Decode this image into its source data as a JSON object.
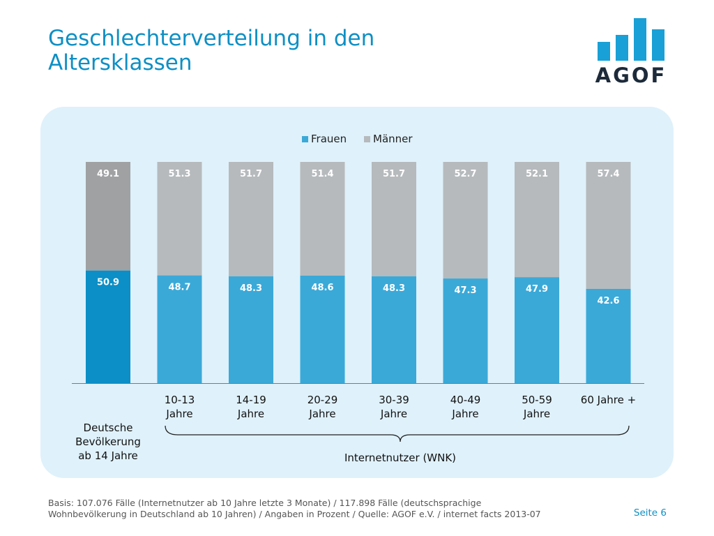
{
  "header": {
    "title_line1": "Geschlechterverteilung in den",
    "title_line2": "Altersklassen",
    "logo_text": "AGOF"
  },
  "chart_data": {
    "type": "bar",
    "stacked": true,
    "categories": [
      "",
      "10-13 Jahre",
      "14-19 Jahre",
      "20-29 Jahre",
      "30-39 Jahre",
      "40-49 Jahre",
      "50-59 Jahre",
      "60 Jahre +"
    ],
    "category_lines": [
      [
        ""
      ],
      [
        "10-13",
        "Jahre"
      ],
      [
        "14-19",
        "Jahre"
      ],
      [
        "20-29",
        "Jahre"
      ],
      [
        "30-39",
        "Jahre"
      ],
      [
        "40-49",
        "Jahre"
      ],
      [
        "50-59",
        "Jahre"
      ],
      [
        "60 Jahre +"
      ]
    ],
    "series": [
      {
        "name": "Frauen",
        "values": [
          50.9,
          48.7,
          48.3,
          48.6,
          48.3,
          47.3,
          47.9,
          42.6
        ],
        "color": "#3aa9d8",
        "highlight_color": "#0b8fc6"
      },
      {
        "name": "Männer",
        "values": [
          49.1,
          51.3,
          51.7,
          51.4,
          51.7,
          52.7,
          52.1,
          57.4
        ],
        "color": "#b6babd",
        "highlight_color": "#9fa1a3"
      }
    ],
    "ylim": [
      0,
      100
    ],
    "legend_position": "top-center",
    "group_labels": {
      "population_lines": [
        "Deutsche",
        "Bevölkerung",
        "ab 14 Jahre"
      ],
      "internet": "Internetnutzer (WNK)"
    }
  },
  "footer": {
    "basis_line1": "Basis: 107.076 Fälle (Internetnutzer ab 10 Jahre letzte 3 Monate) / 117.898 Fälle (deutschsprachige",
    "basis_line2": "Wohnbevölkerung in Deutschland ab 10 Jahren) / Angaben in Prozent / Quelle: AGOF e.V. / internet facts 2013-07",
    "page": "Seite 6"
  },
  "colors": {
    "title": "#0e8fc4",
    "panel": "#dff1fb",
    "logo_bars": "#19a0d6",
    "logo_text": "#1c2a3a"
  }
}
